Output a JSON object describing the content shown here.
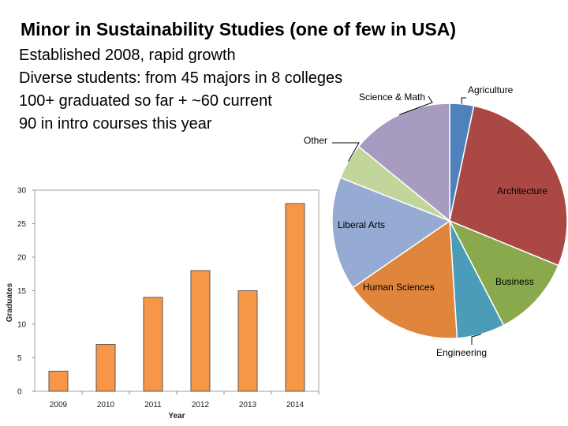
{
  "slide": {
    "title": "Minor in Sustainability Studies (one of few in USA)",
    "bullets": [
      "Established 2008, rapid growth",
      "Diverse students: from 45 majors in 8 colleges",
      "100+ graduated so far + ~60 current",
      "90 in intro courses this year"
    ]
  },
  "chart_data": [
    {
      "type": "bar",
      "title": "",
      "categories": [
        "2009",
        "2010",
        "2011",
        "2012",
        "2013",
        "2014"
      ],
      "values": [
        3,
        7,
        14,
        18,
        15,
        28
      ],
      "xlabel": "Year",
      "ylabel": "Graduates",
      "ylim": [
        0,
        30
      ],
      "yticks": [
        0,
        5,
        10,
        15,
        20,
        25,
        30
      ],
      "grid": false,
      "color": "#f79646"
    },
    {
      "type": "pie",
      "title": "",
      "labels": [
        "Agriculture",
        "Architecture",
        "Business",
        "Engineering",
        "Human Sciences",
        "Liberal Arts",
        "Other",
        "Science & Math"
      ],
      "values": [
        3.3,
        27.9,
        11.2,
        6.6,
        16.4,
        15.6,
        4.9,
        14.1
      ],
      "colors": [
        "#4f81bd",
        "#aa4844",
        "#8aa84c",
        "#4a9cb8",
        "#e0853c",
        "#95abd3",
        "#c2d59b",
        "#a89bc0"
      ]
    }
  ]
}
